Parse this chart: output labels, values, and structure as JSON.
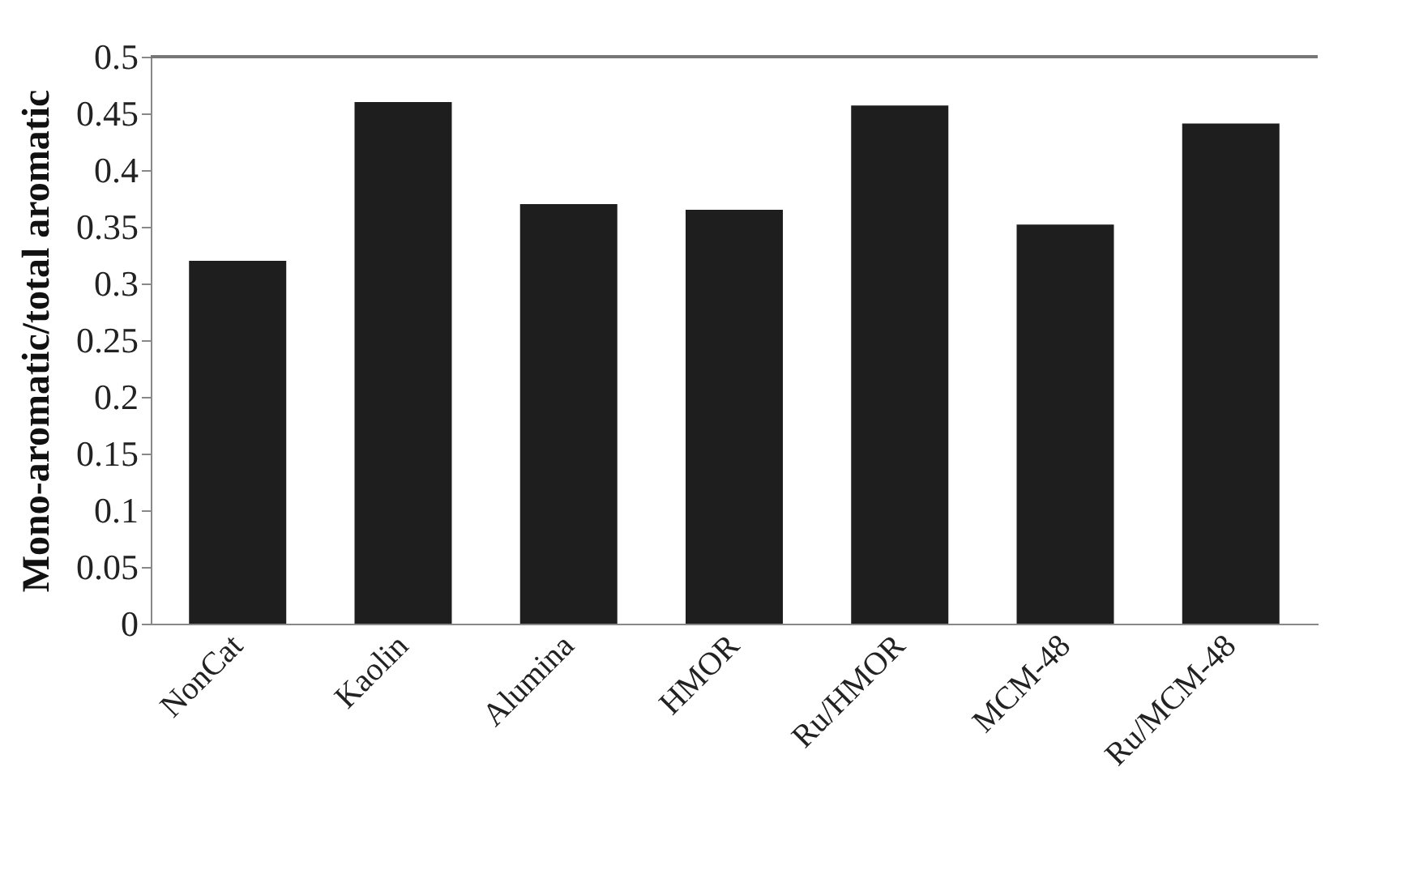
{
  "chart_data": {
    "type": "bar",
    "ylabel": "Mono-aromatic/total aromatic",
    "categories": [
      "NonCat",
      "Kaolin",
      "Alumina",
      "HMOR",
      "Ru/HMOR",
      "MCM-48",
      "Ru/MCM-48"
    ],
    "values": [
      0.32,
      0.46,
      0.37,
      0.365,
      0.457,
      0.352,
      0.441
    ],
    "color": "#1e1e1e",
    "ylim": [
      0,
      0.5
    ],
    "yticks": [
      0,
      0.05,
      0.1,
      0.15,
      0.2,
      0.25,
      0.3,
      0.35,
      0.4,
      0.45,
      0.5
    ],
    "grid": false
  }
}
